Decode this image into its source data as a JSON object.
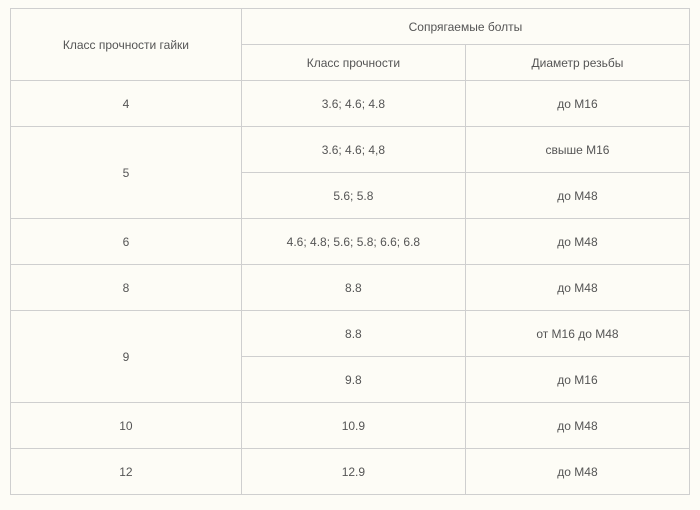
{
  "table": {
    "header": {
      "nut_strength_class": "Класс прочности гайки",
      "mating_bolts": "Сопрягаемые болты",
      "strength_class": "Класс прочности",
      "thread_diameter": "Диаметр резьбы"
    },
    "header_row_height": 36,
    "data_row_height": 46,
    "border_color": "#cfcfcf",
    "background_color": "#fdfcf6",
    "text_color": "#555555",
    "font_size": 12,
    "column_widths_pct": [
      34,
      33,
      33
    ],
    "rows": [
      {
        "nut": "4",
        "rowspan": 1,
        "strength": "3.6; 4.6; 4.8",
        "diameter": "до М16"
      },
      {
        "nut": "5",
        "rowspan": 2,
        "strength": "3.6; 4.6; 4,8",
        "diameter": "свыше М16"
      },
      {
        "nut": null,
        "rowspan": 0,
        "strength": "5.6; 5.8",
        "diameter": "до М48"
      },
      {
        "nut": "6",
        "rowspan": 1,
        "strength": "4.6; 4.8; 5.6; 5.8; 6.6; 6.8",
        "diameter": "до М48"
      },
      {
        "nut": "8",
        "rowspan": 1,
        "strength": "8.8",
        "diameter": "до М48"
      },
      {
        "nut": "9",
        "rowspan": 2,
        "strength": "8.8",
        "diameter": "от М16 до М48"
      },
      {
        "nut": null,
        "rowspan": 0,
        "strength": "9.8",
        "diameter": "до М16"
      },
      {
        "nut": "10",
        "rowspan": 1,
        "strength": "10.9",
        "diameter": "до М48"
      },
      {
        "nut": "12",
        "rowspan": 1,
        "strength": "12.9",
        "diameter": "до М48"
      }
    ]
  }
}
